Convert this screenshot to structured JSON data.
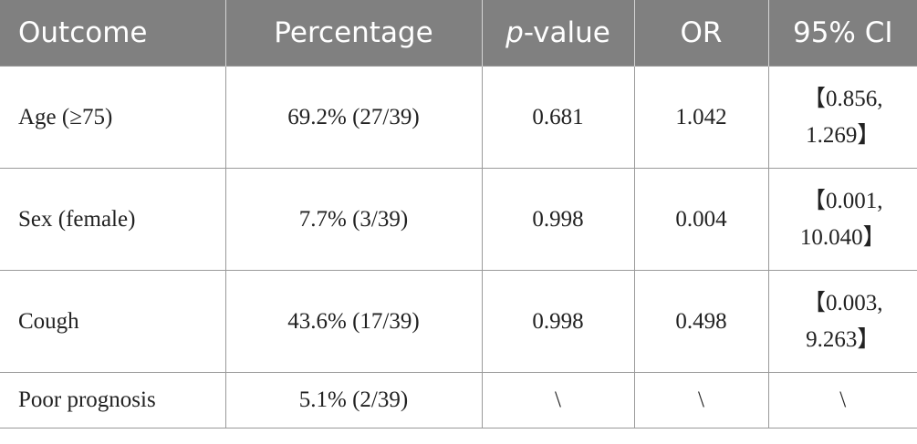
{
  "table": {
    "headers": {
      "outcome": "Outcome",
      "percentage": "Percentage",
      "p_italic": "p",
      "p_rest": "-value",
      "or": "OR",
      "ci": "95% CI"
    },
    "rows": [
      {
        "outcome": "Age (≥75)",
        "percentage": "69.2% (27/39)",
        "p_value": "0.681",
        "or": "1.042",
        "ci_line1": "【0.856,",
        "ci_line2": "1.269】"
      },
      {
        "outcome": "Sex (female)",
        "percentage": "7.7% (3/39)",
        "p_value": "0.998",
        "or": "0.004",
        "ci_line1": "【0.001,",
        "ci_line2": "10.040】"
      },
      {
        "outcome": "Cough",
        "percentage": "43.6% (17/39)",
        "p_value": "0.998",
        "or": "0.498",
        "ci_line1": "【0.003,",
        "ci_line2": "9.263】"
      },
      {
        "outcome": "Poor prognosis",
        "percentage": "5.1% (2/39)",
        "p_value": "\\",
        "or": "\\",
        "ci": "\\"
      }
    ]
  },
  "colors": {
    "header_bg": "#808080",
    "header_text": "#ffffff",
    "grid": "#9a9a9a"
  }
}
